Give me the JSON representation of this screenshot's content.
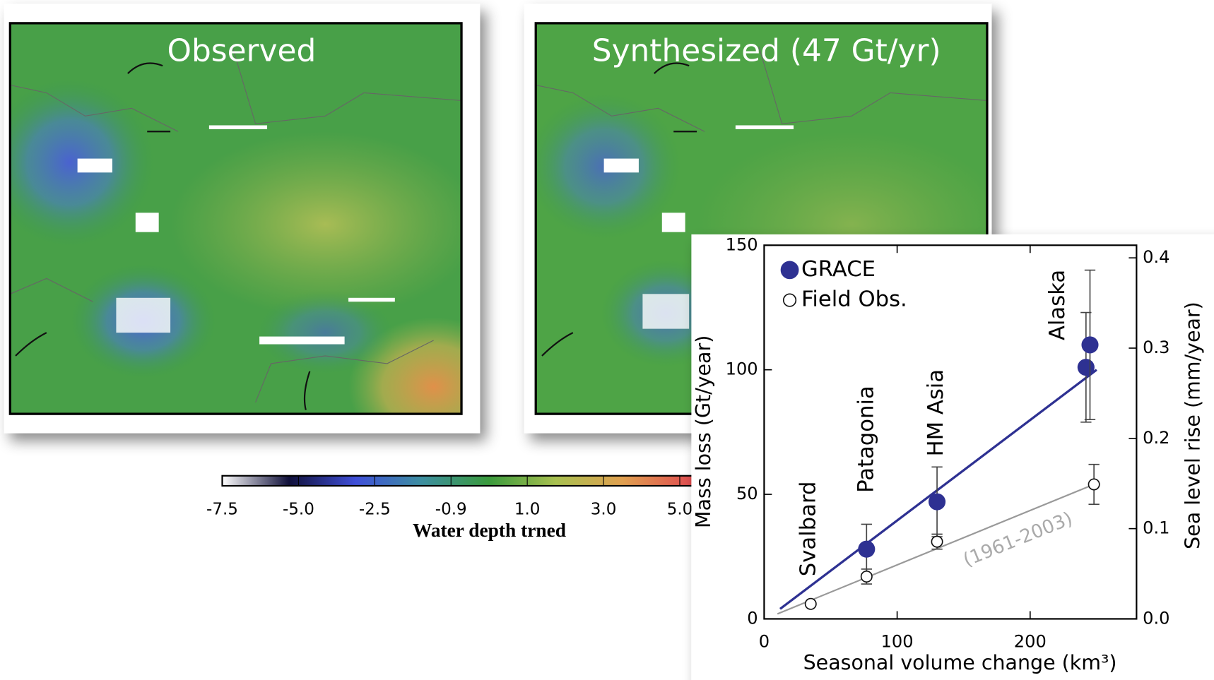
{
  "maps": {
    "panels": [
      {
        "title": "Observed"
      },
      {
        "title": "Synthesized (47 Gt/yr)"
      }
    ],
    "colorbar": {
      "label": "Water depth trned",
      "ticks": [
        -7.5,
        {
          "value": -5.0,
          "label": "-5.0"
        },
        -2.5,
        -0.9,
        {
          "value": 1.0,
          "label": "1.0"
        },
        {
          "value": 3.0,
          "label": "3.0"
        },
        {
          "value": 5.0,
          "label": "5.0"
        }
      ],
      "colors": [
        "#ffffff",
        "#10103a",
        "#3f4fd8",
        "#3d8fa0",
        "#3a9a3c",
        "#a8c050",
        "#e0a050",
        "#e05050",
        "#5a0a10"
      ]
    }
  },
  "chart_data": {
    "type": "scatter",
    "xlabel": "Seasonal volume change (km³)",
    "ylabel": "Mass loss (Gt/year)",
    "y2label": "Sea level rise (mm/year)",
    "xlim": [
      0,
      280
    ],
    "xticks": [
      0,
      100,
      200
    ],
    "ylim": [
      0,
      150
    ],
    "yticks": [
      0,
      50,
      100,
      150
    ],
    "y2lim": [
      0,
      0.414
    ],
    "y2ticks": [
      {
        "value": 0,
        "label": "0.0"
      },
      0.1,
      0.2,
      0.3,
      0.4
    ],
    "series": [
      {
        "name": "GRACE",
        "color": "#2e3192",
        "filled": true,
        "x": [
          77,
          130,
          242,
          245
        ],
        "values": [
          28,
          47,
          101,
          110
        ],
        "errors": [
          10,
          14,
          22,
          30
        ]
      },
      {
        "name": "Field Obs.",
        "color": "#111111",
        "filled": false,
        "x": [
          35,
          77,
          130,
          248
        ],
        "values": [
          6,
          17,
          31,
          54
        ],
        "errors": [
          null,
          3,
          3,
          8
        ]
      }
    ],
    "fit_lines": [
      {
        "color": "#2e3192",
        "x": [
          12,
          250
        ],
        "values": [
          4,
          100
        ]
      },
      {
        "color": "#999999",
        "x": [
          10,
          248
        ],
        "values": [
          2,
          54
        ]
      }
    ],
    "region_labels": [
      "Svalbard",
      "Patagonia",
      "HM Asia",
      "Alaska"
    ],
    "period_label": "(1961-2003)"
  }
}
